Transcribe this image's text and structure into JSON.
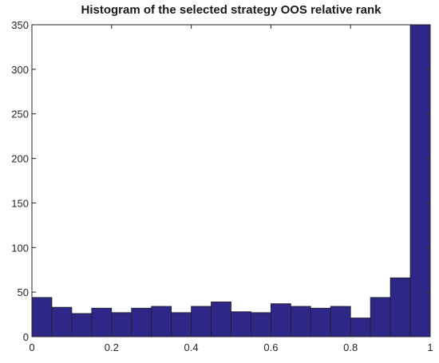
{
  "chart_data": {
    "type": "bar",
    "title": "Histogram of the selected strategy OOS relative rank",
    "xlabel": "",
    "ylabel": "",
    "xlim": [
      0,
      1
    ],
    "ylim": [
      0,
      350
    ],
    "grid": false,
    "bin_edges": [
      0,
      0.05,
      0.1,
      0.15,
      0.2,
      0.25,
      0.3,
      0.35,
      0.4,
      0.45,
      0.5,
      0.55,
      0.6,
      0.65,
      0.7,
      0.75,
      0.8,
      0.85,
      0.9,
      0.95,
      1.0
    ],
    "values": [
      44,
      33,
      26,
      32,
      27,
      32,
      34,
      27,
      34,
      39,
      28,
      27,
      37,
      34,
      32,
      34,
      21,
      44,
      66,
      350
    ],
    "xticks": [
      0,
      0.2,
      0.4,
      0.6,
      0.8,
      1
    ],
    "xtick_labels": [
      "0",
      "0.2",
      "0.4",
      "0.6",
      "0.8",
      "1"
    ],
    "yticks": [
      0,
      50,
      100,
      150,
      200,
      250,
      300,
      350
    ],
    "ytick_labels": [
      "0",
      "50",
      "100",
      "150",
      "200",
      "250",
      "300",
      "350"
    ],
    "bar_color": "#2e2787",
    "edge_color": "#1e1e1e"
  }
}
